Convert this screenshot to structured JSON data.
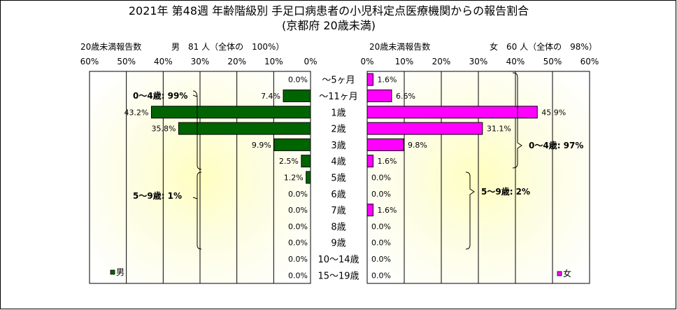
{
  "chart_data": {
    "type": "bar",
    "title_line1": "2021年 第48週 年齢階級別 手足口病患者の小児科定点医療機関からの報告割合",
    "title_line2": "(京都府 20歳未満)",
    "categories": [
      "～5ヶ月",
      "～11ヶ月",
      "1歳",
      "2歳",
      "3歳",
      "4歳",
      "5歳",
      "6歳",
      "7歳",
      "8歳",
      "9歳",
      "10～14歳",
      "15～19歳"
    ],
    "axis_ticks_left": [
      "60%",
      "50%",
      "40%",
      "30%",
      "20%",
      "10%",
      "0%"
    ],
    "axis_ticks_right": [
      "0%",
      "10%",
      "20%",
      "30%",
      "40%",
      "50%",
      "60%"
    ],
    "xlim": [
      0,
      60
    ],
    "series": [
      {
        "name": "男",
        "color": "#006400",
        "values": [
          0.0,
          7.4,
          43.2,
          35.8,
          9.9,
          2.5,
          1.2,
          0.0,
          0.0,
          0.0,
          0.0,
          0.0,
          0.0
        ],
        "value_labels": [
          "0.0%",
          "7.4%",
          "43.2%",
          "35.8%",
          "9.9%",
          "2.5%",
          "1.2%",
          "0.0%",
          "0.0%",
          "0.0%",
          "0.0%",
          "0.0%",
          "0.0%"
        ],
        "header_left": "20歳未満報告数",
        "header_right": "男　81 人（全体の　100%）",
        "group_notes": [
          "0～4歳: 99%",
          "5～9歳: 1%"
        ]
      },
      {
        "name": "女",
        "color": "#ff00ff",
        "values": [
          1.6,
          6.6,
          45.9,
          31.1,
          9.8,
          1.6,
          0.0,
          0.0,
          1.6,
          0.0,
          0.0,
          0.0,
          0.0
        ],
        "value_labels": [
          "1.6%",
          "6.6%",
          "45.9%",
          "31.1%",
          "9.8%",
          "1.6%",
          "0.0%",
          "0.0%",
          "1.6%",
          "0.0%",
          "0.0%",
          "0.0%",
          "0.0%"
        ],
        "header_left": "20歳未満報告数",
        "header_right": "女　60 人（全体の　98%）",
        "group_notes": [
          "0～4歳: 97%",
          "5～9歳: 2%"
        ]
      }
    ],
    "legend": [
      "男",
      "女"
    ],
    "legend_placement": "bottom-left of each panel",
    "grid": "vertical gridlines every 10%",
    "background": "yellow radial gradient"
  }
}
